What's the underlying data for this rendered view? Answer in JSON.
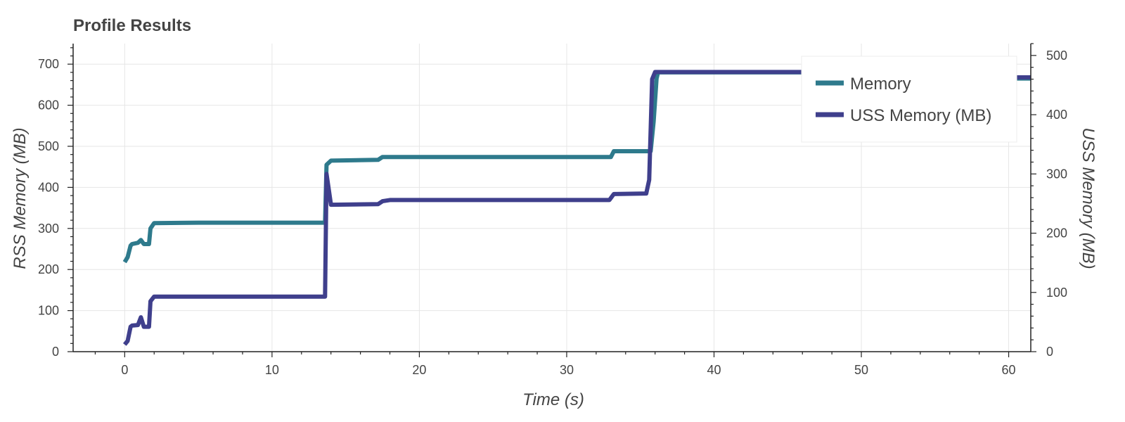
{
  "chart_data": {
    "type": "line",
    "title": "Profile Results",
    "xlabel": "Time (s)",
    "ylabel": "RSS Memory (MB)",
    "y2label": "USS Memory (MB)",
    "xlim": [
      -3.5,
      61.5
    ],
    "ylim": [
      0,
      750
    ],
    "y2lim": [
      0,
      520
    ],
    "xticks": [
      0,
      10,
      20,
      30,
      40,
      50,
      60
    ],
    "yticks": [
      0,
      100,
      200,
      300,
      400,
      500,
      600,
      700
    ],
    "y2ticks": [
      0,
      100,
      200,
      300,
      400,
      500
    ],
    "grid": true,
    "legend_position": "top-right",
    "series": [
      {
        "name": "Memory",
        "axis": "left",
        "color": "#2e7a8c",
        "x": [
          0,
          0.2,
          0.4,
          0.5,
          0.9,
          1.1,
          1.3,
          1.4,
          1.65,
          1.75,
          2.0,
          5,
          13.6,
          13.7,
          14,
          17.2,
          17.5,
          33,
          33.2,
          35.7,
          35.9,
          36.1,
          36.2,
          40,
          50,
          59.9,
          60,
          61.5
        ],
        "y": [
          218,
          230,
          258,
          262,
          265,
          272,
          262,
          262,
          262,
          300,
          313,
          314,
          314,
          455,
          465,
          467,
          474,
          474,
          488,
          488,
          560,
          665,
          680,
          680,
          680,
          680,
          665,
          665
        ]
      },
      {
        "name": "USS Memory (MB)",
        "axis": "right",
        "color": "#3f3f8c",
        "x": [
          0,
          0.2,
          0.4,
          0.5,
          0.9,
          1.1,
          1.3,
          1.4,
          1.65,
          1.75,
          2.0,
          5,
          13.6,
          13.7,
          14,
          17.2,
          17.5,
          18,
          32.9,
          33.2,
          35.4,
          35.6,
          35.8,
          36.0,
          36.2,
          40,
          50,
          59.9,
          60,
          61.5
        ],
        "y": [
          12,
          18,
          42,
          44,
          45,
          58,
          42,
          42,
          42,
          85,
          93,
          93,
          93,
          300,
          248,
          249,
          254,
          256,
          256,
          266,
          267,
          290,
          460,
          472,
          472,
          472,
          472,
          472,
          463,
          463
        ]
      }
    ]
  }
}
